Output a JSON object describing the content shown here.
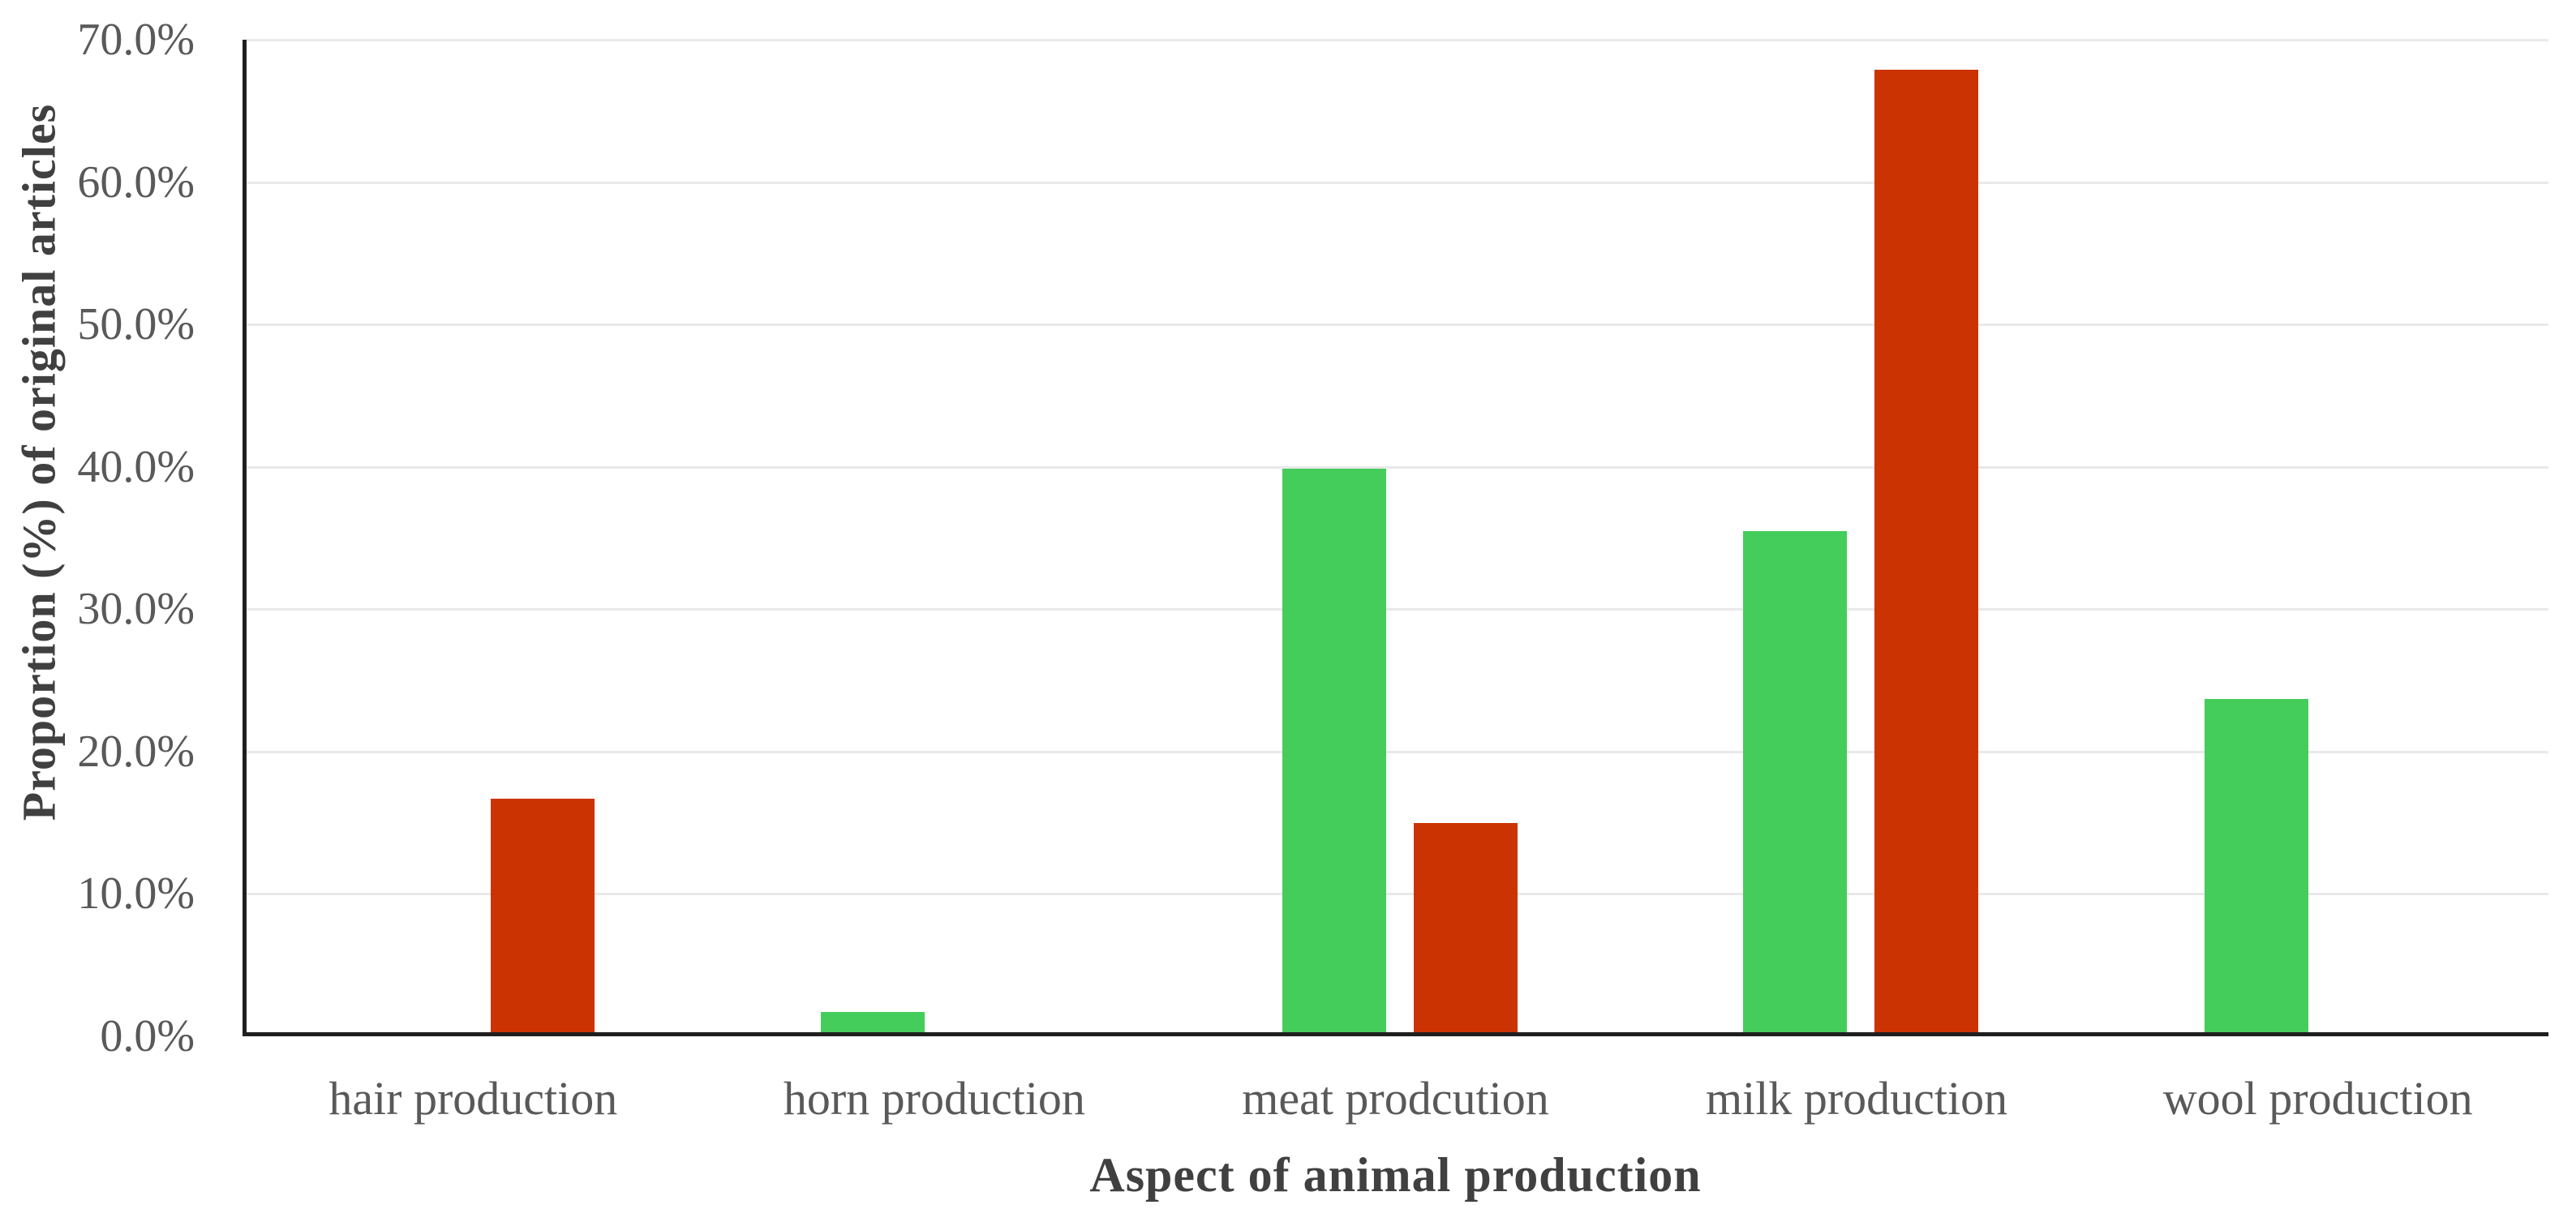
{
  "chart_data": {
    "type": "bar",
    "title": "",
    "categories": [
      "hair production",
      "horn production",
      "meat prodcution",
      "milk production",
      "wool production"
    ],
    "series": [
      {
        "name": "green",
        "color": "#45CD5B",
        "values": [
          0,
          1.4,
          39.6,
          35.2,
          23.4
        ]
      },
      {
        "name": "red",
        "color": "#CC3302",
        "values": [
          16.4,
          0,
          14.7,
          67.6,
          0
        ]
      }
    ],
    "xlabel": "Aspect of animal production",
    "ylabel": "Proportion (%) of original articles",
    "yticks": [
      "0.0%",
      "10.0%",
      "20.0%",
      "30.0%",
      "40.0%",
      "50.0%",
      "60.0%",
      "70.0%"
    ],
    "ylim": [
      0,
      70
    ],
    "grid": "horizontal",
    "legend_position": "none",
    "axis_color": "#1f1f1f",
    "gridline_color": "#e9e9e9",
    "tick_text_color": "#595959",
    "title_text_color": "#404040"
  }
}
